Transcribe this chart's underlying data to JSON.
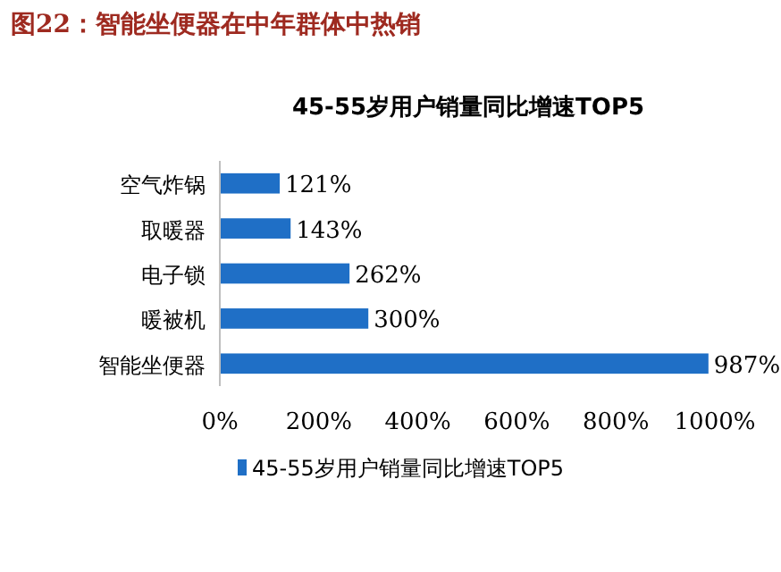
{
  "chart_data": {
    "type": "bar",
    "orientation": "horizontal",
    "title": "图22：智能坐便器在中年群体中热销",
    "subtitle": "45-55岁用户销量同比增速TOP5",
    "categories": [
      "空气炸锅",
      "取暖器",
      "电子锁",
      "暖被机",
      "智能坐便器"
    ],
    "series": [
      {
        "name": "45-55岁用户销量同比增速TOP5",
        "color": "#1f6fc6",
        "values": [
          121,
          143,
          262,
          300,
          987
        ],
        "value_labels": [
          "121%",
          "143%",
          "262%",
          "300%",
          "987%"
        ]
      }
    ],
    "xlim": [
      0,
      1000
    ],
    "xticks": [
      {
        "value": 0,
        "label": "0%"
      },
      {
        "value": 200,
        "label": "200%"
      },
      {
        "value": 400,
        "label": "400%"
      },
      {
        "value": 600,
        "label": "600%"
      },
      {
        "value": 800,
        "label": "800%"
      },
      {
        "value": 1000,
        "label": "1000%"
      }
    ],
    "legend": "bottom"
  }
}
